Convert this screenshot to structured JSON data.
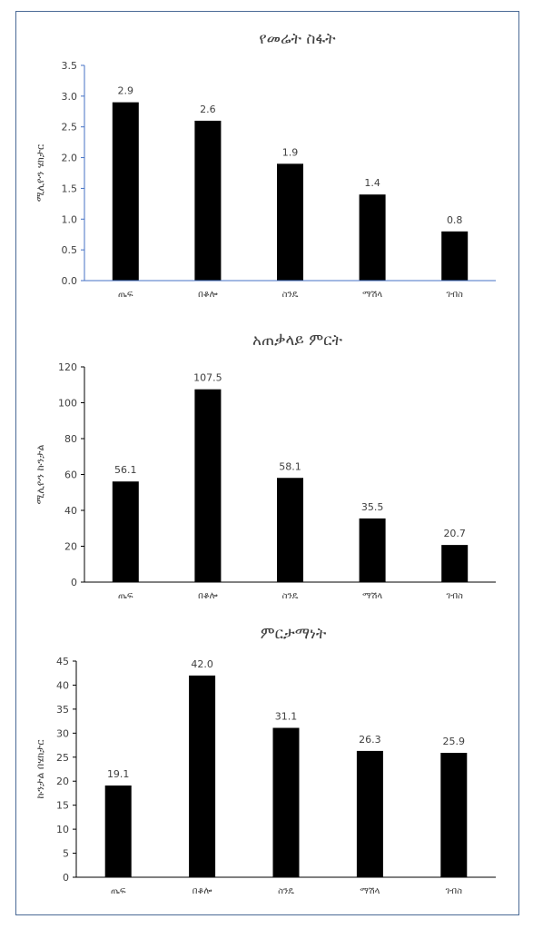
{
  "chart_data": [
    {
      "type": "bar",
      "title": "የመሬት ስፋት",
      "ylabel": "ሚሊዮን ሄክታር",
      "xlabel": "",
      "categories": [
        "ጤፍ",
        "በቆሎ",
        "ስንዴ",
        "ማሽላ",
        "ገብስ"
      ],
      "values": [
        2.9,
        2.6,
        1.9,
        1.4,
        0.8
      ],
      "data_labels": [
        "2.9",
        "2.6",
        "1.9",
        "1.4",
        "0.8"
      ],
      "ylim": [
        0,
        3.5
      ],
      "yticks": [
        "0.0",
        "0.5",
        "1.0",
        "1.5",
        "2.0",
        "2.5",
        "3.0",
        "3.5"
      ],
      "grid": false,
      "bar_color": "#000000",
      "axis_color": "#4472c4"
    },
    {
      "type": "bar",
      "title": "አጠቃላይ ምርት",
      "ylabel": "ሚሊዮን ኩንታል",
      "xlabel": "",
      "categories": [
        "ጤፍ",
        "በቆሎ",
        "ስንዴ",
        "ማሽላ",
        "ገብስ"
      ],
      "values": [
        56.1,
        107.5,
        58.1,
        35.5,
        20.7
      ],
      "data_labels": [
        "56.1",
        "107.5",
        "58.1",
        "35.5",
        "20.7"
      ],
      "ylim": [
        0,
        120
      ],
      "yticks": [
        "0",
        "20",
        "40",
        "60",
        "80",
        "100",
        "120"
      ],
      "grid": false,
      "bar_color": "#000000",
      "axis_color": "#000000"
    },
    {
      "type": "bar",
      "title": "ምርታማነት",
      "ylabel": "ኩንታል በሄክታር",
      "xlabel": "",
      "categories": [
        "ጤፍ",
        "በቆሎ",
        "ስንዴ",
        "ማሽላ",
        "ገብስ"
      ],
      "values": [
        19.1,
        42.0,
        31.1,
        26.3,
        25.9
      ],
      "data_labels": [
        "19.1",
        "42.0",
        "31.1",
        "26.3",
        "25.9"
      ],
      "ylim": [
        0,
        45
      ],
      "yticks": [
        "0",
        "5",
        "10",
        "15",
        "20",
        "25",
        "30",
        "35",
        "40",
        "45"
      ],
      "grid": false,
      "bar_color": "#000000",
      "axis_color": "#000000"
    }
  ]
}
